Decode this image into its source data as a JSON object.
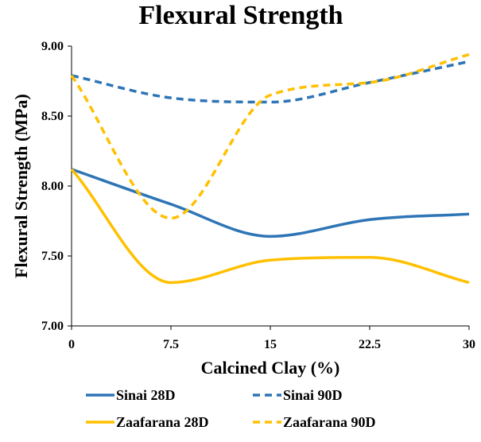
{
  "chart_data": {
    "type": "line",
    "title": "Flexural Strength",
    "xlabel": "Calcined Clay (%)",
    "ylabel": "Flexural Strength (MPa)",
    "x": [
      0,
      7.5,
      15,
      22.5,
      30
    ],
    "x_tick_labels": [
      "0",
      "7.5",
      "15",
      "22.5",
      "30"
    ],
    "xlim": [
      0,
      30
    ],
    "ylim": [
      7.0,
      9.0
    ],
    "y_ticks": [
      7.0,
      7.5,
      8.0,
      8.5,
      9.0
    ],
    "y_tick_labels": [
      "7.00",
      "7.50",
      "8.00",
      "8.50",
      "9.00"
    ],
    "grid": false,
    "smooth": true,
    "legend_position": "bottom",
    "series": [
      {
        "name": "Sinai 28D",
        "color": "#2E75B6",
        "dash": "solid",
        "x": [
          0,
          7.5,
          15,
          22.5,
          30
        ],
        "values": [
          8.12,
          7.87,
          7.64,
          7.76,
          7.8
        ]
      },
      {
        "name": "Sinai 90D",
        "color": "#2E75B6",
        "dash": "dashed",
        "x": [
          0,
          7.5,
          15,
          22.5,
          30
        ],
        "values": [
          8.79,
          8.63,
          8.6,
          8.74,
          8.89
        ]
      },
      {
        "name": "Zaafarana 28D",
        "color": "#FFC000",
        "dash": "solid",
        "x": [
          0,
          7.5,
          15,
          22.5,
          30
        ],
        "values": [
          8.12,
          7.31,
          7.47,
          7.49,
          7.31
        ]
      },
      {
        "name": "Zaafarana 90D",
        "color": "#FFC000",
        "dash": "dashed",
        "x": [
          0,
          7.5,
          15,
          22.5,
          30
        ],
        "values": [
          8.79,
          7.77,
          8.65,
          8.74,
          8.94
        ]
      }
    ]
  }
}
